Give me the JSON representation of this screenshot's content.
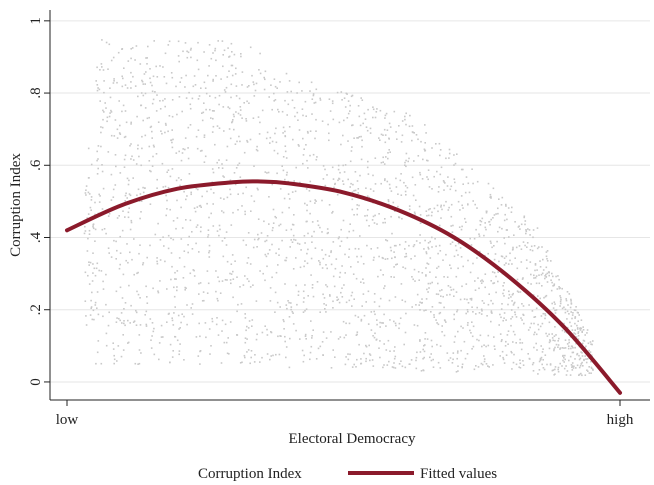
{
  "chart_data": {
    "type": "scatter",
    "title": "",
    "xlabel": "Electoral Democracy",
    "ylabel": "Corruption Index",
    "x_tick_labels": [
      "low",
      "high"
    ],
    "xlim": [
      0,
      1
    ],
    "ylim": [
      -0.05,
      1.03
    ],
    "y_ticks": [
      0,
      0.2,
      0.4,
      0.6,
      0.8,
      1
    ],
    "y_tick_labels": [
      "0",
      ".2",
      ".4",
      ".6",
      ".8",
      "1"
    ],
    "grid": true,
    "legend": {
      "placement": "bottom"
    },
    "colors": {
      "scatter": "#c9c9c9",
      "fitted": "#8b1a2b"
    },
    "series": [
      {
        "name": "Corruption Index",
        "kind": "scatter",
        "approx_x_range": [
          0.03,
          0.95
        ],
        "approx_y_range": [
          0.03,
          0.95
        ],
        "approx_point_count": 2500
      },
      {
        "name": "Fitted values",
        "kind": "line",
        "x": [
          0.0,
          0.1,
          0.2,
          0.3,
          0.35,
          0.4,
          0.5,
          0.6,
          0.7,
          0.8,
          0.9,
          1.0
        ],
        "y": [
          0.42,
          0.49,
          0.535,
          0.553,
          0.555,
          0.55,
          0.525,
          0.475,
          0.4,
          0.29,
          0.15,
          -0.03
        ]
      }
    ]
  }
}
